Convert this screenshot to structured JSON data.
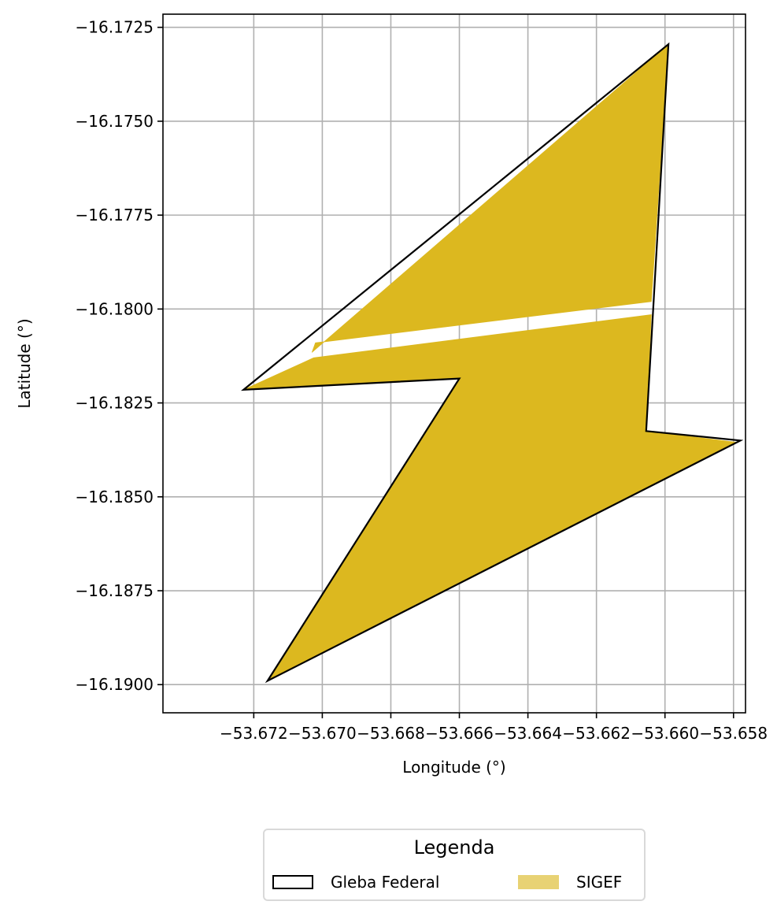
{
  "chart_data": {
    "type": "map",
    "xlabel": "Longitude (°)",
    "ylabel": "Latitude (°)",
    "xlim": [
      -53.67465,
      -53.65765
    ],
    "ylim": [
      -16.19075,
      -16.17215
    ],
    "grid": true,
    "x_ticks": [
      -53.672,
      -53.67,
      -53.668,
      -53.666,
      -53.664,
      -53.662,
      -53.66,
      -53.658
    ],
    "x_tick_labels": [
      "−53.672",
      "−53.670",
      "−53.668",
      "−53.666",
      "−53.664",
      "−53.662",
      "−53.660",
      "−53.658"
    ],
    "y_ticks": [
      -16.1725,
      -16.175,
      -16.1775,
      -16.18,
      -16.1825,
      -16.185,
      -16.1875,
      -16.19
    ],
    "y_tick_labels": [
      "−16.1725",
      "−16.1750",
      "−16.1775",
      "−16.1800",
      "−16.1825",
      "−16.1850",
      "−16.1875",
      "−16.1900"
    ],
    "layers": [
      {
        "name": "SIGEF",
        "kind": "fill",
        "color": "#dcb81f",
        "polygons": [
          [
            [
              -53.6703,
              -16.18115
            ],
            [
              -53.6599,
              -16.17295
            ],
            [
              -53.6604,
              -16.1798
            ],
            [
              -53.6702,
              -16.1809
            ]
          ],
          [
            [
              -53.6723,
              -16.18215
            ],
            [
              -53.67025,
              -16.1813
            ],
            [
              -53.6604,
              -16.18015
            ],
            [
              -53.66055,
              -16.18325
            ],
            [
              -53.6579,
              -16.18355
            ],
            [
              -53.6716,
              -16.1899
            ],
            [
              -53.666,
              -16.18185
            ],
            [
              -53.6723,
              -16.18215
            ]
          ]
        ]
      },
      {
        "name": "Gleba Federal",
        "kind": "outline",
        "color": "#000000",
        "polygons": [
          [
            [
              -53.6723,
              -16.18215
            ],
            [
              -53.6599,
              -16.17295
            ],
            [
              -53.66055,
              -16.18325
            ],
            [
              -53.6578,
              -16.1835
            ],
            [
              -53.6716,
              -16.1899
            ],
            [
              -53.666,
              -16.18185
            ],
            [
              -53.6723,
              -16.18215
            ]
          ]
        ]
      }
    ],
    "legend": {
      "title": "Legenda",
      "placement": "bottom-center",
      "entries": [
        {
          "label": "Gleba Federal",
          "style": "outline",
          "color": "#000000"
        },
        {
          "label": "SIGEF",
          "style": "fill",
          "color": "#e8d274"
        }
      ]
    }
  }
}
